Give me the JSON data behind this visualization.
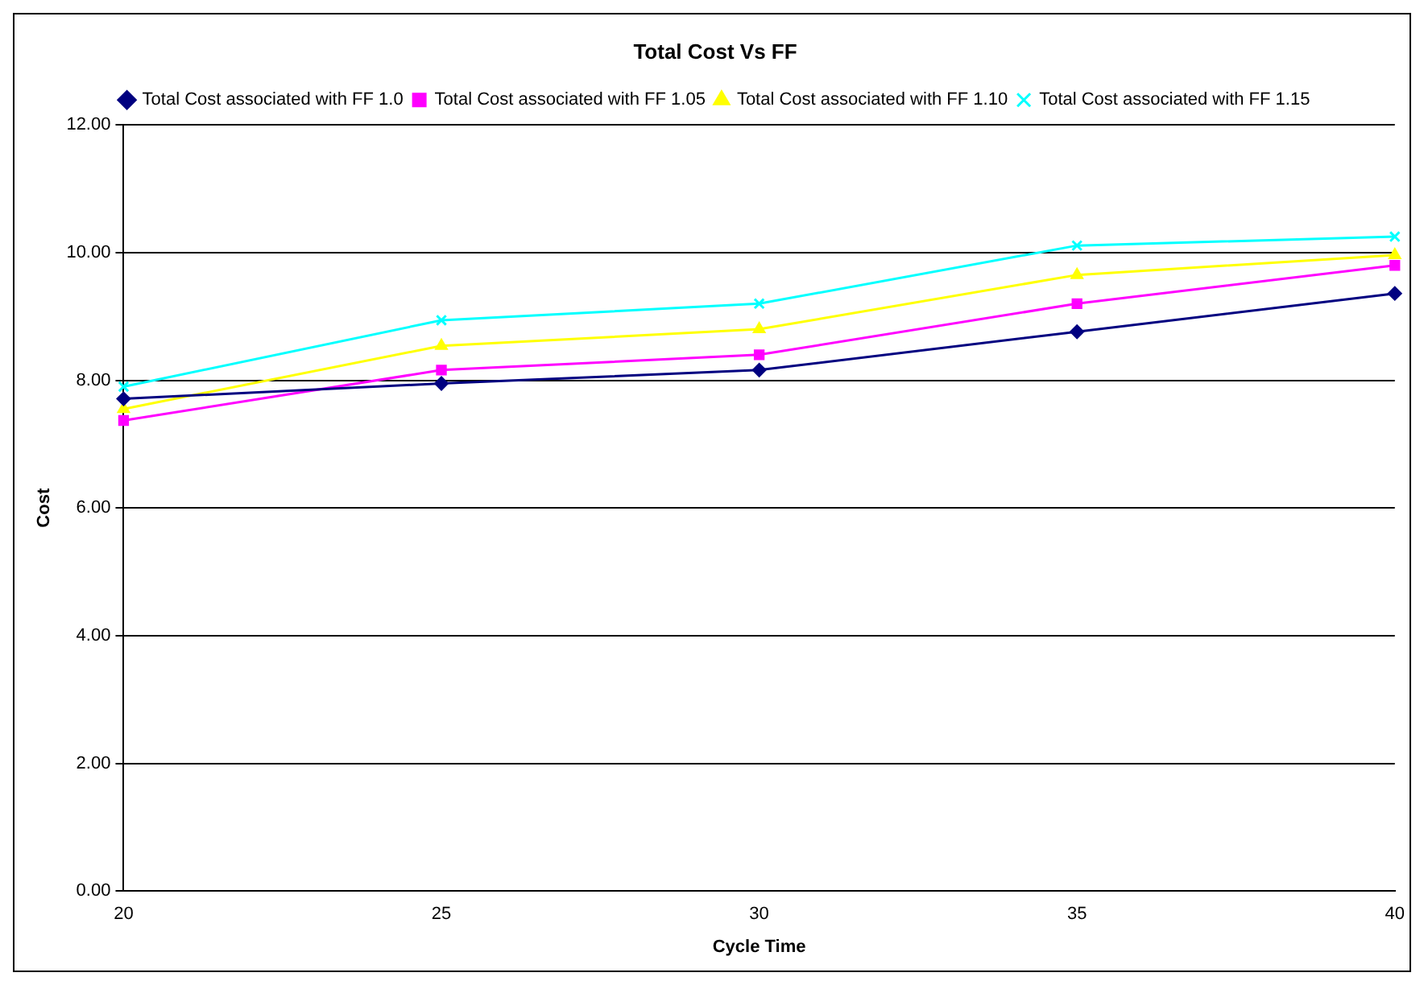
{
  "chart_data": {
    "type": "line",
    "title": "Total Cost Vs FF",
    "xlabel": "Cycle Time",
    "ylabel": "Cost",
    "categories": [
      "20",
      "25",
      "30",
      "35",
      "40"
    ],
    "series": [
      {
        "name": "Total Cost associated with FF 1.0",
        "color": "#000080",
        "marker": "diamond",
        "values": [
          7.71,
          7.95,
          8.16,
          8.76,
          9.36
        ]
      },
      {
        "name": "Total Cost associated with FF 1.05",
        "color": "#ff00ff",
        "marker": "square",
        "values": [
          7.37,
          8.16,
          8.4,
          9.2,
          9.8
        ]
      },
      {
        "name": "Total Cost associated with FF 1.10",
        "color": "#ffff00",
        "marker": "triangle",
        "values": [
          7.55,
          8.54,
          8.8,
          9.65,
          9.96
        ]
      },
      {
        "name": "Total Cost associated with FF 1.15",
        "color": "#00ffff",
        "marker": "cross",
        "values": [
          7.9,
          8.94,
          9.2,
          10.11,
          10.25
        ]
      }
    ],
    "ylim": [
      0,
      12
    ],
    "yticks": [
      {
        "value": 0,
        "label": "0.00"
      },
      {
        "value": 2,
        "label": "2.00"
      },
      {
        "value": 4,
        "label": "4.00"
      },
      {
        "value": 6,
        "label": "6.00"
      },
      {
        "value": 8,
        "label": "8.00"
      },
      {
        "value": 10,
        "label": "10.00"
      },
      {
        "value": 12,
        "label": "12.00"
      }
    ],
    "grid": "y",
    "legend": "top",
    "line_style": "solid"
  }
}
